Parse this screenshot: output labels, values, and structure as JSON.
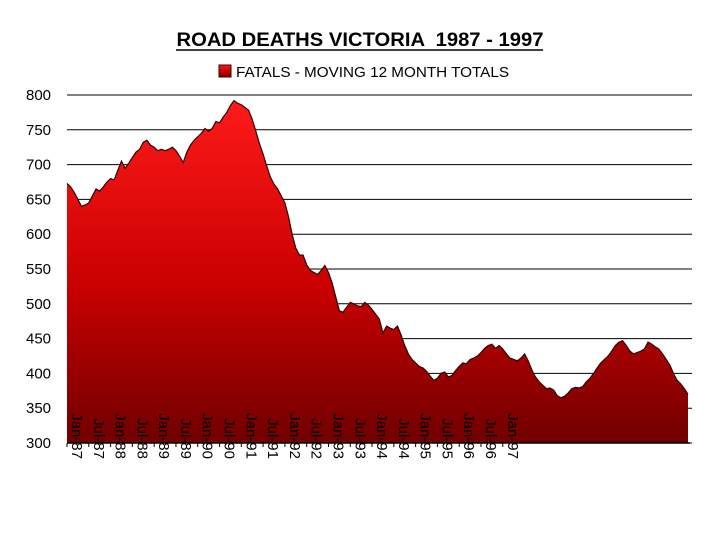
{
  "chart_data": {
    "type": "area",
    "title": "ROAD DEATHS VICTORIA  1987 - 1997",
    "legend": {
      "label": "FATALS - MOVING 12 MONTH TOTALS",
      "position": "top"
    },
    "xlabel": "",
    "ylabel": "",
    "ylim": [
      300,
      800
    ],
    "yticks": [
      300,
      350,
      400,
      450,
      500,
      550,
      600,
      650,
      700,
      750,
      800
    ],
    "grid": "horizontal",
    "x_tick_labels": [
      "Jan-87",
      "Jul-87",
      "Jan-88",
      "Jul-88",
      "Jan-89",
      "Jul-89",
      "Jan-90",
      "Jul-90",
      "Jan-91",
      "Jul-91",
      "Jan-92",
      "Jul-92",
      "Jan-93",
      "Jul-93",
      "Jan-94",
      "Jul-94",
      "Jan-95",
      "Jul-95",
      "Jan-96",
      "Jul-96",
      "Jan-97"
    ],
    "x_start": "Jan-87",
    "colors": {
      "fill_top": "#ff1a1a",
      "fill_bottom": "#700000",
      "line": "#300000"
    },
    "series": [
      {
        "name": "FATALS - MOVING 12 MONTH TOTALS",
        "values": [
          673,
          668,
          660,
          650,
          640,
          642,
          645,
          655,
          665,
          662,
          668,
          675,
          680,
          678,
          692,
          705,
          695,
          702,
          710,
          718,
          722,
          732,
          735,
          728,
          725,
          720,
          722,
          720,
          722,
          725,
          720,
          712,
          703,
          718,
          728,
          735,
          740,
          745,
          752,
          748,
          752,
          762,
          760,
          768,
          775,
          785,
          792,
          788,
          786,
          782,
          778,
          765,
          748,
          730,
          715,
          698,
          682,
          672,
          665,
          655,
          645,
          625,
          600,
          580,
          570,
          570,
          556,
          548,
          545,
          542,
          548,
          555,
          545,
          530,
          510,
          490,
          488,
          495,
          502,
          500,
          497,
          496,
          502,
          498,
          492,
          485,
          478,
          458,
          468,
          465,
          463,
          468,
          455,
          440,
          428,
          420,
          415,
          410,
          408,
          403,
          396,
          390,
          393,
          400,
          402,
          395,
          397,
          404,
          410,
          415,
          414,
          420,
          422,
          425,
          430,
          436,
          440,
          442,
          436,
          440,
          435,
          428,
          422,
          420,
          418,
          422,
          428,
          418,
          405,
          395,
          388,
          383,
          378,
          379,
          376,
          368,
          365,
          367,
          372,
          378,
          380,
          379,
          381,
          388,
          393,
          400,
          408,
          415,
          420,
          425,
          432,
          440,
          445,
          447,
          440,
          432,
          428,
          430,
          432,
          435,
          445,
          442,
          438,
          435,
          428,
          420,
          412,
          400,
          390,
          385,
          378,
          370
        ]
      }
    ]
  }
}
